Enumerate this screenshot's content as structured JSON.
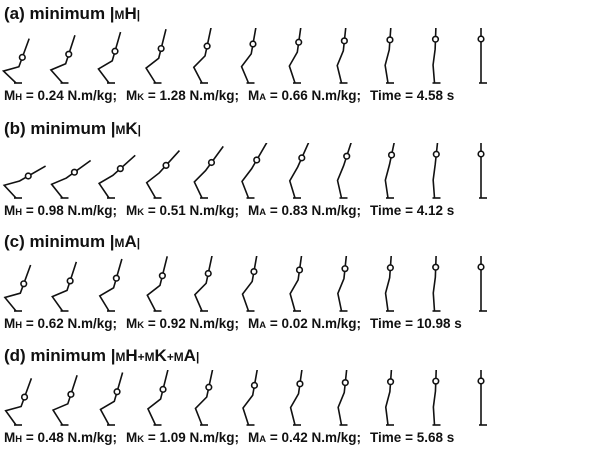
{
  "panels": [
    {
      "title": [
        "(a) minimum |",
        "M",
        "H",
        "|"
      ],
      "stats": [
        {
          "symbol": "M",
          "sub": "H",
          "text": "= 0.24 N.m/kg;"
        },
        {
          "symbol": "M",
          "sub": "K",
          "text": "= 1.28 N.m/kg;"
        },
        {
          "symbol": "M",
          "sub": "A",
          "text": "= 0.66 N.m/kg;"
        }
      ],
      "time": "Time = 4.58 s"
    },
    {
      "title": [
        "(b) minimum |",
        "M",
        "K",
        "|"
      ],
      "stats": [
        {
          "symbol": "M",
          "sub": "H",
          "text": "= 0.98 N.m/kg;"
        },
        {
          "symbol": "M",
          "sub": "K",
          "text": "= 0.51 N.m/kg;"
        },
        {
          "symbol": "M",
          "sub": "A",
          "text": "= 0.83 N.m/kg;"
        }
      ],
      "time": "Time = 4.12 s"
    },
    {
      "title": [
        "(c) minimum |",
        "M",
        "A",
        "|"
      ],
      "stats": [
        {
          "symbol": "M",
          "sub": "H",
          "text": "= 0.62 N.m/kg;"
        },
        {
          "symbol": "M",
          "sub": "K",
          "text": "= 0.92 N.m/kg;"
        },
        {
          "symbol": "M",
          "sub": "A",
          "text": "= 0.02 N.m/kg;"
        }
      ],
      "time": "Time = 10.98 s"
    },
    {
      "title": [
        "(d) minimum |",
        "M",
        "H",
        "+M",
        "K",
        "+M",
        "A",
        "|"
      ],
      "stats": [
        {
          "symbol": "M",
          "sub": "H",
          "text": "= 0.48 N.m/kg;"
        },
        {
          "symbol": "M",
          "sub": "K",
          "text": "= 1.09 N.m/kg;"
        },
        {
          "symbol": "M",
          "sub": "A",
          "text": "= 0.42 N.m/kg;"
        }
      ],
      "time": "Time = 5.68 s"
    }
  ]
}
